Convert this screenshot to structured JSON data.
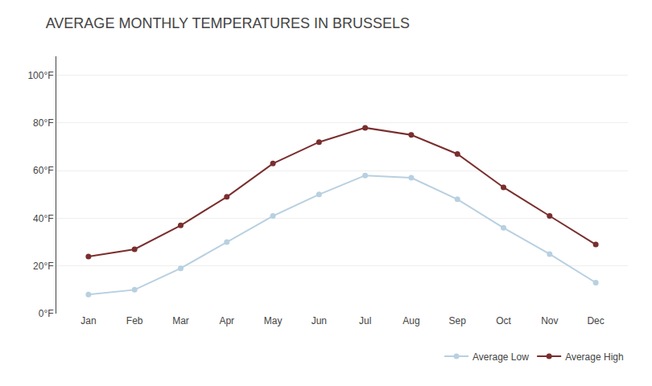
{
  "chart_data": {
    "type": "line",
    "title": "AVERAGE MONTHLY TEMPERATURES IN BRUSSELS",
    "categories": [
      "Jan",
      "Feb",
      "Mar",
      "Apr",
      "May",
      "Jun",
      "Jul",
      "Aug",
      "Sep",
      "Oct",
      "Nov",
      "Dec"
    ],
    "series": [
      {
        "name": "Average Low",
        "color": "#b8d0e0",
        "values": [
          8,
          10,
          19,
          30,
          41,
          50,
          58,
          57,
          48,
          36,
          25,
          13
        ]
      },
      {
        "name": "Average High",
        "color": "#7a2e2e",
        "values": [
          24,
          27,
          37,
          49,
          63,
          72,
          78,
          75,
          67,
          53,
          41,
          29
        ]
      }
    ],
    "ylim": [
      0,
      108
    ],
    "yticks": [
      {
        "value": 0,
        "label": "0°F"
      },
      {
        "value": 20,
        "label": "20°F"
      },
      {
        "value": 40,
        "label": "40°F"
      },
      {
        "value": 60,
        "label": "60°F"
      },
      {
        "value": 80,
        "label": "80°F"
      },
      {
        "value": 100,
        "label": "100°F"
      }
    ],
    "grid": true,
    "legend": "bottom right",
    "marker": "circle"
  }
}
